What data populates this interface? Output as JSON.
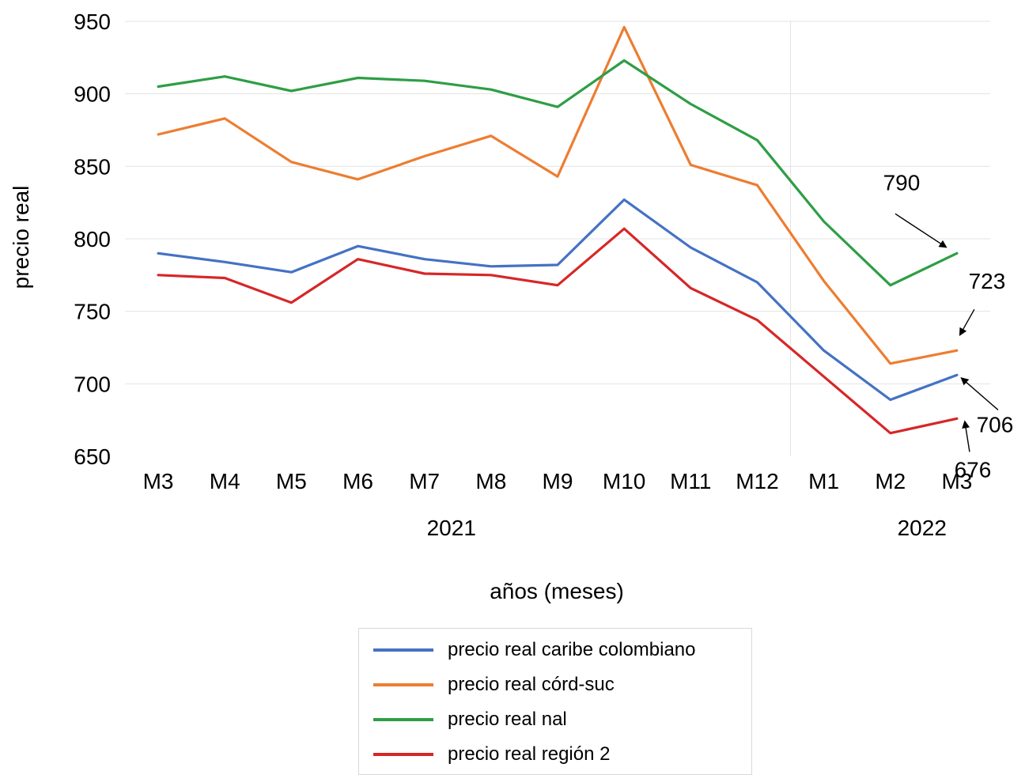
{
  "chart_data": {
    "type": "line",
    "xlabel": "años (meses)",
    "ylabel": "precio real",
    "ylim": [
      650,
      950
    ],
    "yticks": [
      "950",
      "900",
      "850",
      "800",
      "750",
      "700",
      "650"
    ],
    "categories": [
      "M3",
      "M4",
      "M5",
      "M6",
      "M7",
      "M8",
      "M9",
      "M10",
      "M11",
      "M12",
      "M1",
      "M2",
      "M3"
    ],
    "year_groups": [
      {
        "label": "2021",
        "start": 0,
        "end": 9
      },
      {
        "label": "2022",
        "start": 10,
        "end": 12
      }
    ],
    "grid": "horizontal",
    "legend_position": "bottom",
    "series": [
      {
        "name": "precio real caribe colombiano",
        "color": "#4472c4",
        "values": [
          790,
          784,
          777,
          795,
          786,
          781,
          782,
          827,
          794,
          770,
          723,
          689,
          706
        ]
      },
      {
        "name": "precio real córd-suc",
        "color": "#ed7d31",
        "values": [
          872,
          883,
          853,
          841,
          857,
          871,
          843,
          946,
          851,
          837,
          771,
          714,
          723
        ]
      },
      {
        "name": "precio real nal",
        "color": "#2e9e45",
        "values": [
          905,
          912,
          902,
          911,
          909,
          903,
          891,
          923,
          893,
          868,
          812,
          768,
          790
        ]
      },
      {
        "name": "precio real región 2",
        "color": "#d62728",
        "values": [
          775,
          773,
          756,
          786,
          776,
          775,
          768,
          807,
          766,
          744,
          705,
          666,
          676
        ]
      }
    ],
    "annotations": [
      {
        "text": "790",
        "series": 2,
        "point": 12
      },
      {
        "text": "723",
        "series": 1,
        "point": 12
      },
      {
        "text": "706",
        "series": 0,
        "point": 12
      },
      {
        "text": "676",
        "series": 3,
        "point": 12
      }
    ]
  }
}
